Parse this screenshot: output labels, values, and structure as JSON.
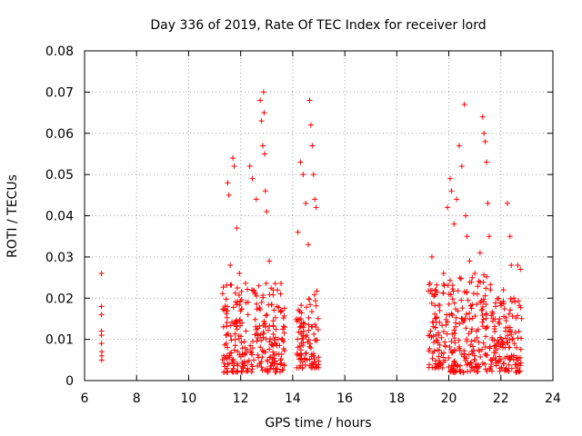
{
  "chart_data": {
    "type": "scatter",
    "title": "Day 336 of 2019, Rate Of TEC Index for receiver lord",
    "xlabel": "GPS time / hours",
    "ylabel": "ROTI / TECUs",
    "xlim": [
      6,
      24
    ],
    "ylim": [
      0,
      0.08
    ],
    "xticks": [
      6,
      8,
      10,
      12,
      14,
      16,
      18,
      20,
      22,
      24
    ],
    "xtick_labels": [
      "6",
      "8",
      "10",
      "12",
      "14",
      "16",
      "18",
      "20",
      "22",
      "24"
    ],
    "yticks": [
      0,
      0.01,
      0.02,
      0.03,
      0.04,
      0.05,
      0.06,
      0.07,
      0.08
    ],
    "ytick_labels": [
      "0",
      "0.01",
      "0.02",
      "0.03",
      "0.04",
      "0.05",
      "0.06",
      "0.07",
      "0.08"
    ],
    "grid": true,
    "marker": "+",
    "colors": {
      "marker": "#ff0000",
      "grid": "#a0a0a0",
      "axis": "#000000"
    },
    "series": [
      {
        "name": "ROTI",
        "x": [
          6.65,
          6.65,
          6.65,
          6.65,
          6.65,
          6.65,
          6.66,
          6.66,
          6.66,
          11.35,
          11.45,
          11.5,
          11.55,
          11.6,
          11.7,
          11.75,
          11.85,
          11.95,
          12.05,
          12.2,
          12.35,
          12.45,
          12.55,
          12.6,
          12.7,
          12.75,
          12.8,
          12.85,
          12.88,
          12.9,
          12.92,
          12.95,
          13.0,
          13.1,
          13.25,
          13.4,
          14.2,
          14.3,
          14.4,
          14.5,
          14.6,
          14.65,
          14.7,
          14.75,
          14.8,
          14.85,
          14.9,
          19.35,
          19.5,
          19.65,
          19.8,
          19.95,
          20.05,
          20.1,
          20.2,
          20.3,
          20.4,
          20.5,
          20.6,
          20.65,
          20.7,
          20.8,
          20.9,
          21.0,
          21.1,
          21.2,
          21.3,
          21.35,
          21.4,
          21.45,
          21.5,
          21.55,
          21.6,
          21.8,
          21.95,
          22.1,
          22.25,
          22.35,
          22.4,
          22.5,
          22.65,
          22.75,
          11.5,
          12.1,
          12.5,
          13.05,
          13.3,
          14.25,
          14.55,
          14.8,
          19.6,
          20.15,
          20.55,
          21.05,
          21.65,
          22.2,
          22.6
        ],
        "y": [
          0.026,
          0.018,
          0.016,
          0.012,
          0.011,
          0.009,
          0.007,
          0.006,
          0.005,
          0.006,
          0.009,
          0.048,
          0.045,
          0.028,
          0.054,
          0.052,
          0.037,
          0.026,
          0.014,
          0.012,
          0.052,
          0.049,
          0.021,
          0.044,
          0.023,
          0.068,
          0.063,
          0.057,
          0.07,
          0.065,
          0.055,
          0.046,
          0.041,
          0.029,
          0.022,
          0.018,
          0.036,
          0.053,
          0.05,
          0.043,
          0.033,
          0.068,
          0.062,
          0.057,
          0.05,
          0.044,
          0.042,
          0.03,
          0.022,
          0.017,
          0.026,
          0.042,
          0.049,
          0.046,
          0.038,
          0.044,
          0.057,
          0.052,
          0.067,
          0.04,
          0.035,
          0.029,
          0.025,
          0.026,
          0.021,
          0.031,
          0.064,
          0.06,
          0.058,
          0.053,
          0.043,
          0.035,
          0.022,
          0.018,
          0.015,
          0.022,
          0.043,
          0.035,
          0.028,
          0.02,
          0.028,
          0.027,
          0.004,
          0.003,
          0.005,
          0.002,
          0.004,
          0.006,
          0.005,
          0.006,
          0.004,
          0.003,
          0.002,
          0.004,
          0.005,
          0.003,
          0.002
        ]
      }
    ],
    "dense_clusters": [
      {
        "x_range": [
          11.3,
          13.7
        ],
        "y_range": [
          0.002,
          0.024
        ]
      },
      {
        "x_range": [
          14.1,
          15.0
        ],
        "y_range": [
          0.003,
          0.022
        ]
      },
      {
        "x_range": [
          19.2,
          20.0
        ],
        "y_range": [
          0.003,
          0.024
        ]
      },
      {
        "x_range": [
          20.0,
          21.7
        ],
        "y_range": [
          0.002,
          0.026
        ]
      },
      {
        "x_range": [
          21.7,
          22.8
        ],
        "y_range": [
          0.002,
          0.02
        ]
      }
    ]
  }
}
